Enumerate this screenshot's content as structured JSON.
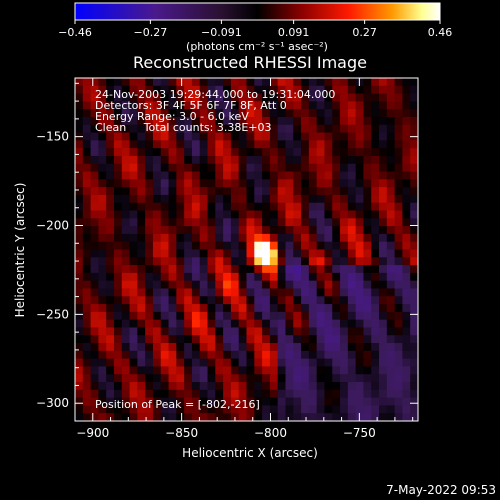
{
  "chart_data": {
    "type": "heatmap",
    "title": "Reconstructed RHESSI Image",
    "xlabel": "Heliocentric X (arcsec)",
    "ylabel": "Heliocentric Y (arcsec)",
    "xlim": [
      -910,
      -717
    ],
    "ylim": [
      -310,
      -117
    ],
    "x_ticks": [
      -900,
      -850,
      -800,
      -750
    ],
    "y_ticks": [
      -300,
      -250,
      -200,
      -150
    ],
    "x_tick_labels": [
      "−900",
      "−850",
      "−800",
      "−750"
    ],
    "y_tick_labels": [
      "−300",
      "−250",
      "−200",
      "−150"
    ],
    "colorbar": {
      "min": -0.46,
      "max": 0.46,
      "tick_values": [
        -0.46,
        -0.27,
        -0.091,
        0.091,
        0.27,
        0.46
      ],
      "tick_labels": [
        "−0.46",
        "−0.27",
        "−0.091",
        "0.091",
        "0.27",
        "0.46"
      ],
      "units": "(photons cm⁻² s⁻¹ asec⁻²)"
    },
    "colors": [
      "#0000ff",
      "#4a1a8c",
      "#3a1a58",
      "#000000",
      "#8a0000",
      "#ff1a00",
      "#ff9a00",
      "#ffff90",
      "#ffffff"
    ],
    "peak": {
      "x": -802,
      "y": -216,
      "value": 0.46
    },
    "annotations": [
      "24-Nov-2003 19:29:44.000 to 19:31:04.000",
      "Detectors: 3F 4F 5F 6F 7F 8F, Att 0",
      "Energy Range: 3.0 - 6.0 keV",
      "Clean     Total counts: 3.38E+03",
      "Position of Peak = [-802,-216]"
    ]
  },
  "footer": {
    "date": "7-May-2022 09:53"
  }
}
